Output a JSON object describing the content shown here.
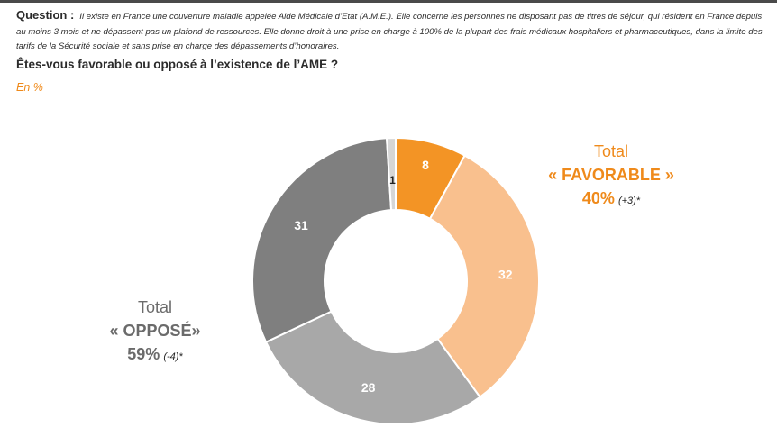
{
  "question": {
    "label": "Question :",
    "text": "Il existe en France une couverture maladie appelée Aide Médicale d’Etat (A.M.E.). Elle concerne les personnes ne disposant pas de titres de séjour, qui résident en France depuis au moins 3 mois et ne dépassent pas un plafond de ressources. Elle donne droit à une prise en charge à 100% de la plupart des frais médicaux hospitaliers et pharmaceutiques, dans la limite des tarifs de la Sécurité sociale et sans prise en charge des dépassements d’honoraires."
  },
  "headline": "Êtes-vous favorable ou opposé à l’existence de l’AME ?",
  "unit": "En %",
  "totals": {
    "favorable": {
      "line1": "Total",
      "line2": "« FAVORABLE »",
      "pct": "40%",
      "delta": "(+3)*"
    },
    "oppose": {
      "line1": "Total",
      "line2": "« OPPOSÉ»",
      "pct": "59%",
      "delta": "(-4)*"
    }
  },
  "chart_data": {
    "type": "pie",
    "variant": "donut",
    "categories": [
      "",
      "",
      "",
      "",
      ""
    ],
    "values": [
      8,
      32,
      28,
      31,
      1
    ],
    "labels": [
      "8",
      "32",
      "28",
      "31",
      "1"
    ],
    "colors": [
      "#f39425",
      "#f9c08e",
      "#a8a8a8",
      "#7f7f7f",
      "#d6d6d6"
    ],
    "label_colors": [
      "#ffffff",
      "#ffffff",
      "#ffffff",
      "#ffffff",
      "#222222"
    ],
    "start": "top, clockwise"
  }
}
